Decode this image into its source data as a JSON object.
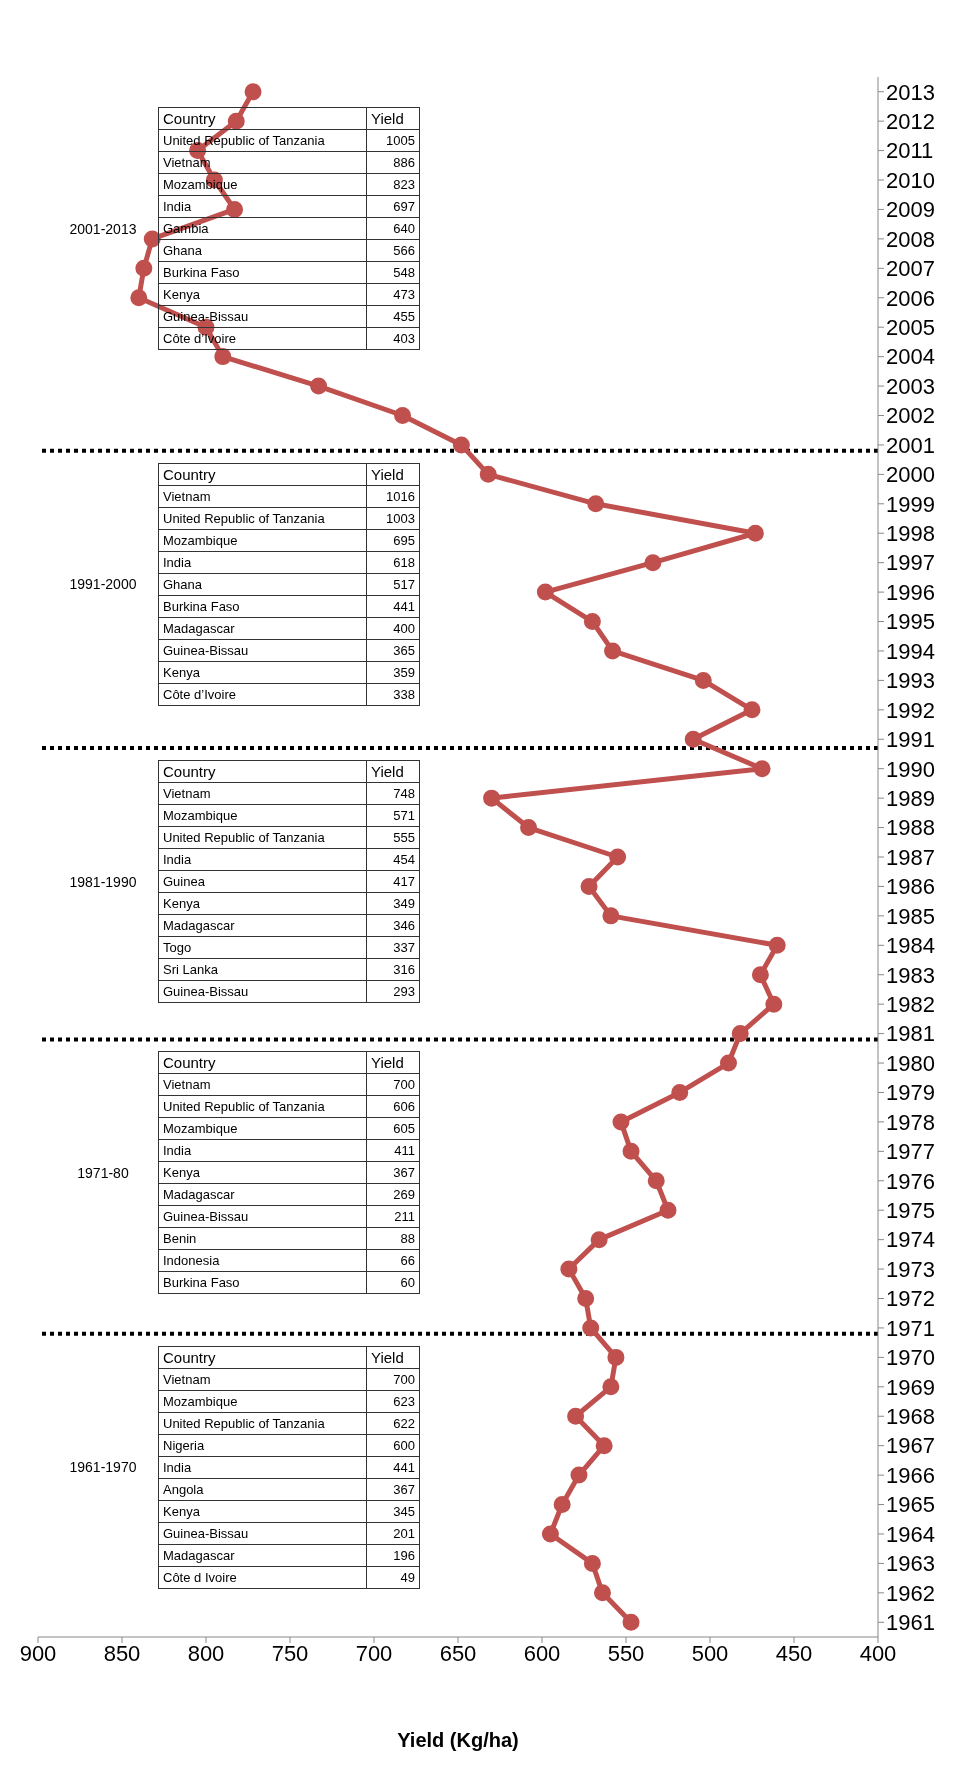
{
  "chart_data": {
    "type": "line",
    "orientation": "horizontal",
    "xlabel": "Yield (Kg/ha)",
    "x": [
      1961,
      1962,
      1963,
      1964,
      1965,
      1966,
      1967,
      1968,
      1969,
      1970,
      1971,
      1972,
      1973,
      1974,
      1975,
      1976,
      1977,
      1978,
      1979,
      1980,
      1981,
      1982,
      1983,
      1984,
      1985,
      1986,
      1987,
      1988,
      1989,
      1990,
      1991,
      1992,
      1993,
      1994,
      1995,
      1996,
      1997,
      1998,
      1999,
      2000,
      2001,
      2002,
      2003,
      2004,
      2005,
      2006,
      2007,
      2008,
      2009,
      2010,
      2011,
      2012,
      2013
    ],
    "series": [
      {
        "color": "#c0504d",
        "values": [
          547,
          564,
          570,
          595,
          588,
          578,
          563,
          580,
          559,
          556,
          571,
          574,
          584,
          566,
          525,
          532,
          547,
          553,
          518,
          489,
          482,
          462,
          470,
          460,
          559,
          572,
          555,
          608,
          630,
          469,
          510,
          475,
          504,
          558,
          570,
          598,
          534,
          473,
          568,
          632,
          648,
          683,
          733,
          790,
          800,
          840,
          837,
          832,
          783,
          795,
          805,
          782,
          772
        ]
      }
    ],
    "xlim": [
      900,
      400
    ],
    "xticks": [
      900,
      850,
      800,
      750,
      700,
      650,
      600,
      550,
      500,
      450,
      400
    ],
    "ylim": [
      1960.5,
      2013.5
    ],
    "yticks": [
      1961,
      1962,
      1963,
      1964,
      1965,
      1966,
      1967,
      1968,
      1969,
      1970,
      1971,
      1972,
      1973,
      1974,
      1975,
      1976,
      1977,
      1978,
      1979,
      1980,
      1981,
      1982,
      1983,
      1984,
      1985,
      1986,
      1987,
      1988,
      1989,
      1990,
      1991,
      1992,
      1993,
      1994,
      1995,
      1996,
      1997,
      1998,
      1999,
      2000,
      2001,
      2002,
      2003,
      2004,
      2005,
      2006,
      2007,
      2008,
      2009,
      2010,
      2011,
      2012,
      2013
    ],
    "marker": "circle",
    "line_style": "solid",
    "ref_lines": [
      {
        "axis": "y",
        "value": 1970.8,
        "color": "#000000",
        "line_style": "dotted"
      },
      {
        "axis": "y",
        "value": 1980.8,
        "color": "#000000",
        "line_style": "dotted"
      },
      {
        "axis": "y",
        "value": 1990.7,
        "color": "#000000",
        "line_style": "dotted"
      },
      {
        "axis": "y",
        "value": 2000.8,
        "color": "#000000",
        "line_style": "dotted"
      }
    ],
    "annotations": [
      "1961-1970\nCountry\tYield\nVietnam\t700\nMozambique\t623\nUnited Republic of Tanzania\t622\nNigeria\t600\nIndia\t441\nAngola\t367\nKenya\t345\nGuinea-Bissau\t201\nMadagascar\t196\nCôte d Ivoire\t49",
      "1971-80\nCountry\tYield\nVietnam\t700\nUnited Republic of Tanzania\t606\nMozambique\t605\nIndia\t411\nKenya\t367\nMadagascar\t269\nGuinea-Bissau\t211\nBenin\t88\nIndonesia\t66\nBurkina Faso\t60",
      "1981-1990\nCountry\tYield\nVietnam\t748\nMozambique\t571\nUnited Republic of Tanzania\t555\nIndia\t454\nGuinea\t417\nKenya\t349\nMadagascar\t346\nTogo\t337\nSri Lanka\t316\nGuinea-Bissau\t293",
      "1991-2000\nCountry\tYield\nVietnam\t1016\nUnited Republic of Tanzania\t1003\nMozambique\t695\nIndia\t618\nGhana\t517\nBurkina Faso\t441\nMadagascar\t400\nGuinea-Bissau\t365\nKenya\t359\nCôte d’Ivoire\t338",
      "2001-2013\nCountry\tYield\nUnited Republic of Tanzania\t1005\nVietnam\t886\nMozambique\t823\nIndia\t697\nGambia\t640\nGhana\t566\nBurkina Faso\t548\nKenya\t473\nGuinea-Bissau\t455\nCôte d’Ivoire\t403"
    ]
  }
}
